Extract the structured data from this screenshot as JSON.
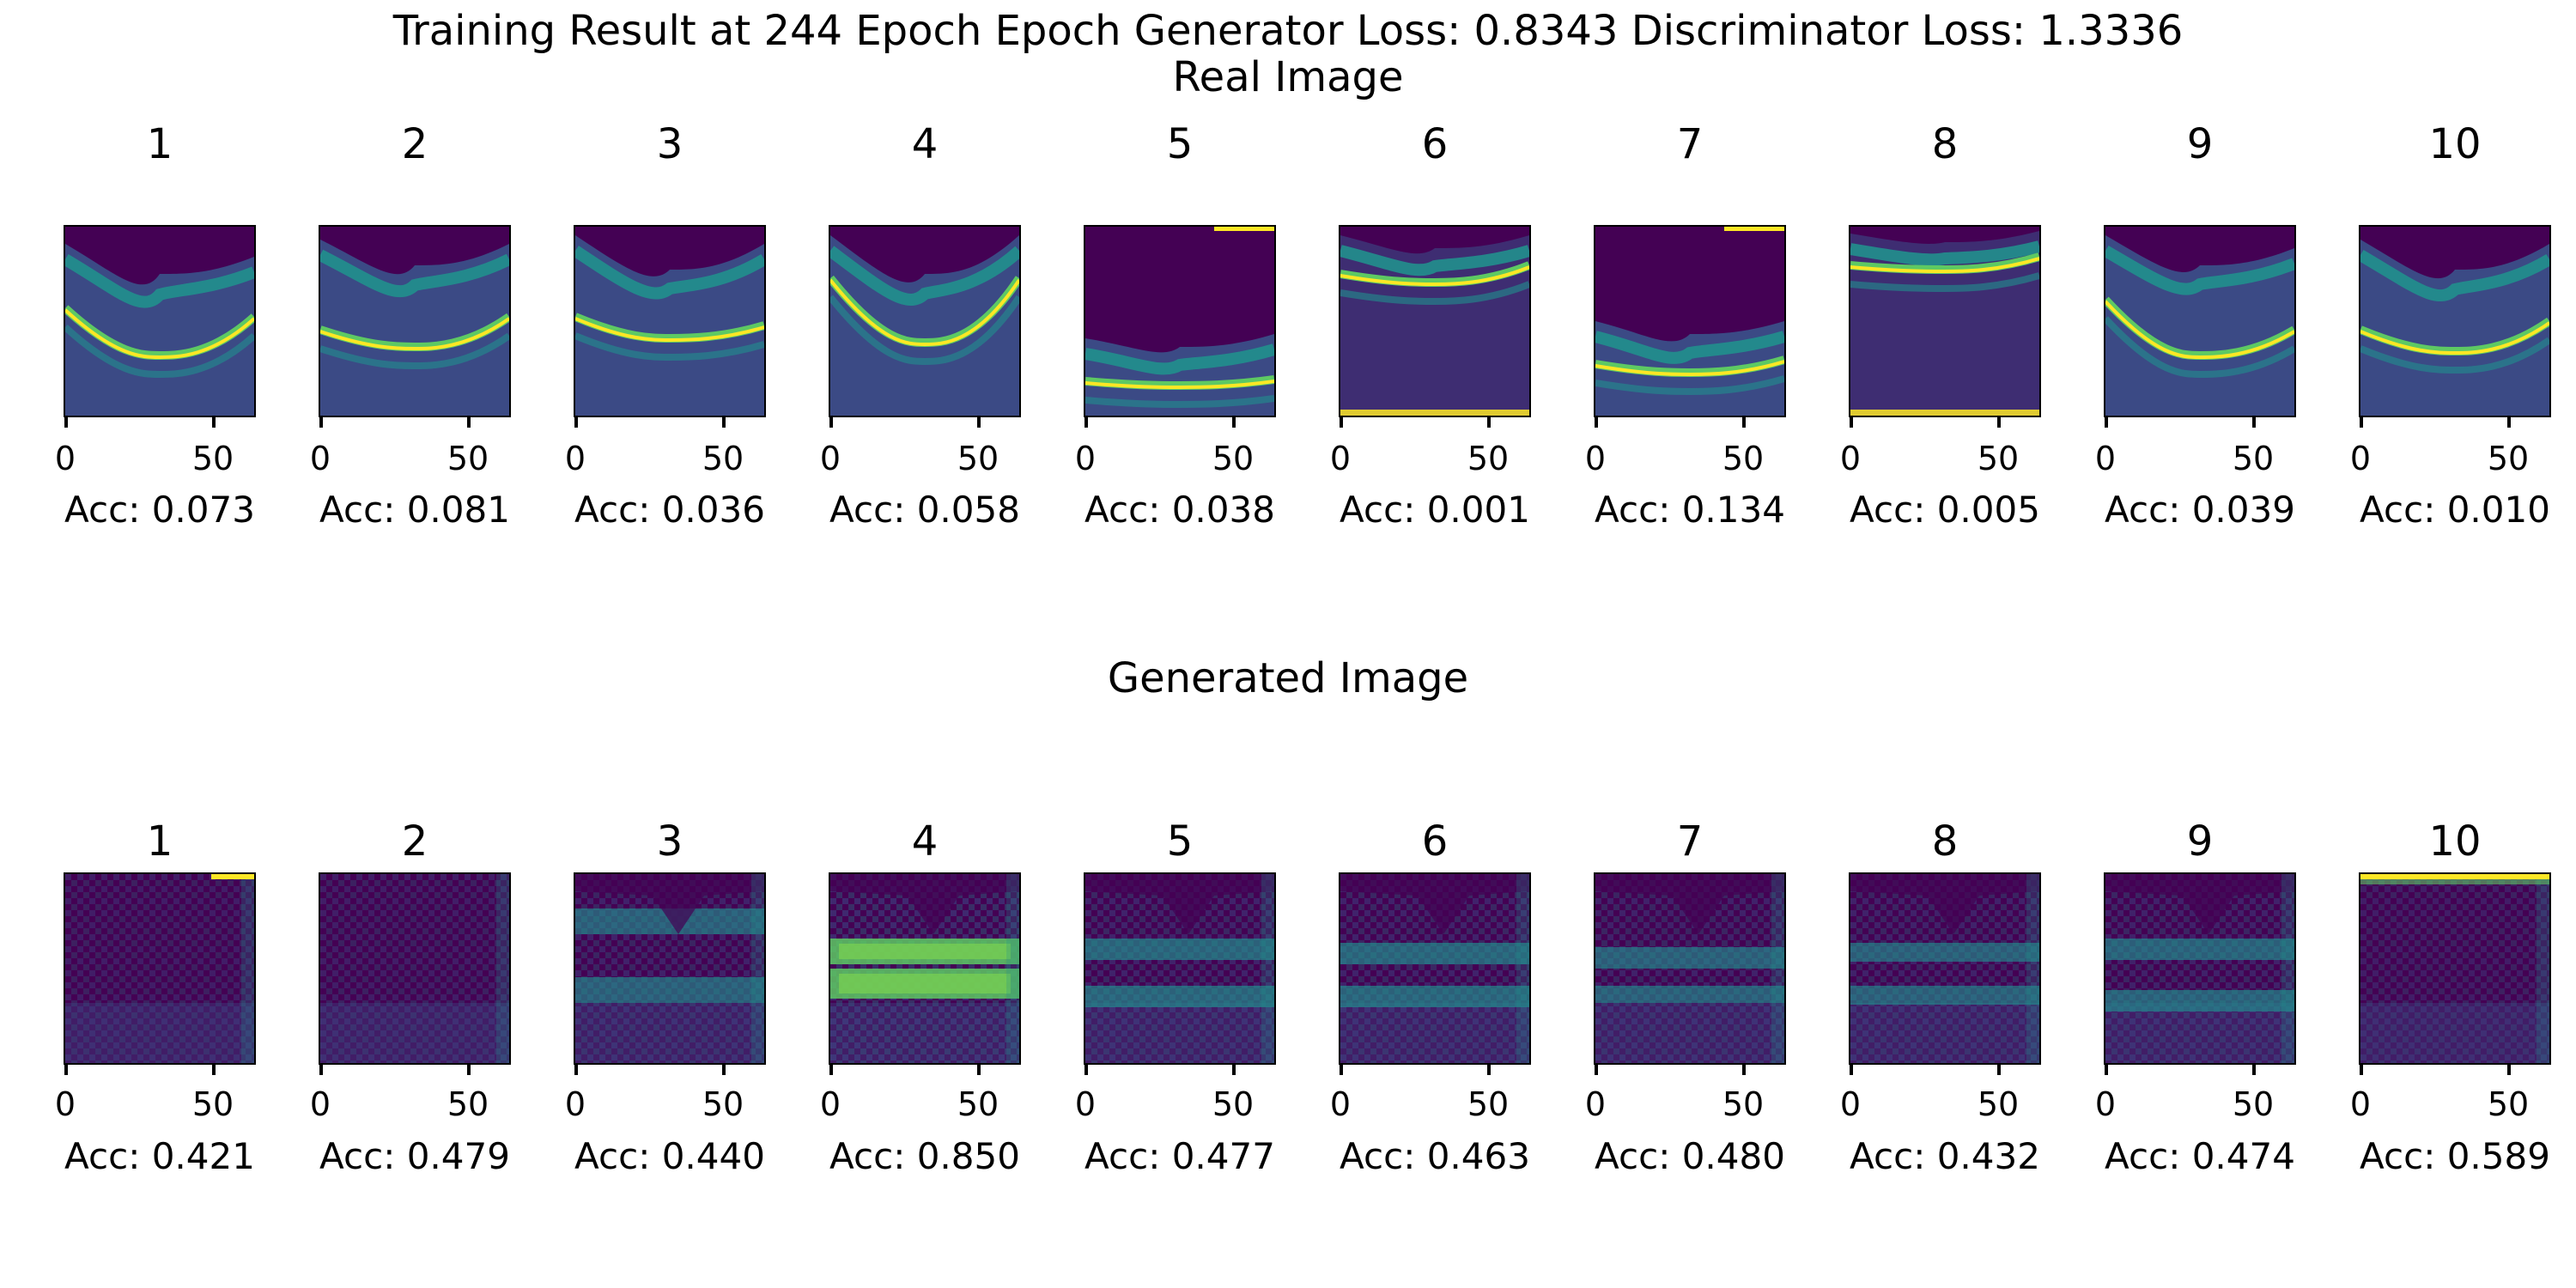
{
  "title": "Training Result at 244 Epoch Epoch Generator Loss: 0.8343 Discriminator Loss: 1.3336",
  "tick_labels": [
    "0",
    "50"
  ],
  "colormap": {
    "dark": "#440154",
    "blue": "#3b528b",
    "teal": "#21908d",
    "green": "#5dc963",
    "yellow": "#fde725"
  },
  "rows": [
    {
      "section_title": "Real Image",
      "kind": "real",
      "panels": [
        {
          "number": "1",
          "acc": "Acc: 0.073"
        },
        {
          "number": "2",
          "acc": "Acc: 0.081"
        },
        {
          "number": "3",
          "acc": "Acc: 0.036"
        },
        {
          "number": "4",
          "acc": "Acc: 0.058"
        },
        {
          "number": "5",
          "acc": "Acc: 0.038"
        },
        {
          "number": "6",
          "acc": "Acc: 0.001"
        },
        {
          "number": "7",
          "acc": "Acc: 0.134"
        },
        {
          "number": "8",
          "acc": "Acc: 0.005"
        },
        {
          "number": "9",
          "acc": "Acc: 0.039"
        },
        {
          "number": "10",
          "acc": "Acc: 0.010"
        }
      ]
    },
    {
      "section_title": "Generated Image",
      "kind": "generated",
      "panels": [
        {
          "number": "1",
          "acc": "Acc: 0.421"
        },
        {
          "number": "2",
          "acc": "Acc: 0.479"
        },
        {
          "number": "3",
          "acc": "Acc: 0.440"
        },
        {
          "number": "4",
          "acc": "Acc: 0.850"
        },
        {
          "number": "5",
          "acc": "Acc: 0.477"
        },
        {
          "number": "6",
          "acc": "Acc: 0.463"
        },
        {
          "number": "7",
          "acc": "Acc: 0.480"
        },
        {
          "number": "8",
          "acc": "Acc: 0.432"
        },
        {
          "number": "9",
          "acc": "Acc: 0.474"
        },
        {
          "number": "10",
          "acc": "Acc: 0.589"
        }
      ]
    }
  ]
}
